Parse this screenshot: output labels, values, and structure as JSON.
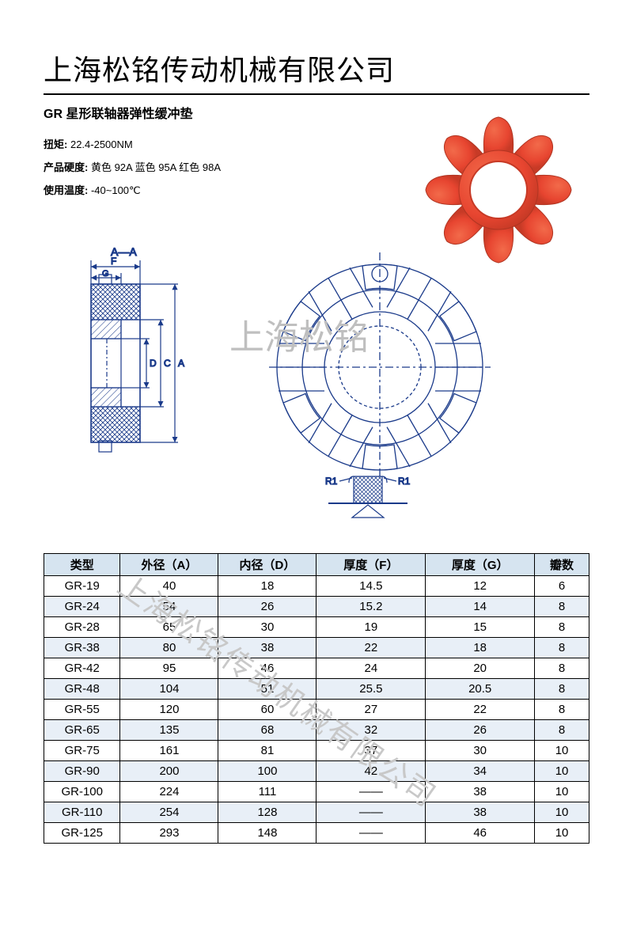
{
  "header": {
    "company": "上海松铭传动机械有限公司",
    "subtitle": "GR 星形联轴器弹性缓冲垫"
  },
  "specs": {
    "torque_label": "扭矩:",
    "torque_value": "22.4-2500NM",
    "hardness_label": "产品硬度:",
    "hardness_value": "黄色 92A 蓝色 95A 红色 98A",
    "temp_label": "使用温度:",
    "temp_value": "-40~100℃"
  },
  "product_image": {
    "type": "star-coupling-spider",
    "color": "#e74530",
    "petals": 8
  },
  "diagram": {
    "section_label": "A—A",
    "dims": {
      "F": "F",
      "G": "G",
      "D": "D",
      "C": "C",
      "A": "A"
    },
    "detail": {
      "R1_left": "R1",
      "R1_right": "R1"
    },
    "line_color": "#1a3a8a",
    "hatch_color": "#1a3a8a"
  },
  "watermarks": {
    "w1": "上海松铭",
    "w2": "上海松铭传动机械有限公司"
  },
  "table": {
    "columns": [
      "类型",
      "外径（A）",
      "内径（D）",
      "厚度（F）",
      "厚度（G）",
      "瓣数"
    ],
    "rows": [
      [
        "GR-19",
        "40",
        "18",
        "14.5",
        "12",
        "6"
      ],
      [
        "GR-24",
        "54",
        "26",
        "15.2",
        "14",
        "8"
      ],
      [
        "GR-28",
        "65",
        "30",
        "19",
        "15",
        "8"
      ],
      [
        "GR-38",
        "80",
        "38",
        "22",
        "18",
        "8"
      ],
      [
        "GR-42",
        "95",
        "46",
        "24",
        "20",
        "8"
      ],
      [
        "GR-48",
        "104",
        "51",
        "25.5",
        "20.5",
        "8"
      ],
      [
        "GR-55",
        "120",
        "60",
        "27",
        "22",
        "8"
      ],
      [
        "GR-65",
        "135",
        "68",
        "32",
        "26",
        "8"
      ],
      [
        "GR-75",
        "161",
        "81",
        "37",
        "30",
        "10"
      ],
      [
        "GR-90",
        "200",
        "100",
        "42",
        "34",
        "10"
      ],
      [
        "GR-100",
        "224",
        "111",
        "——",
        "38",
        "10"
      ],
      [
        "GR-110",
        "254",
        "128",
        "——",
        "38",
        "10"
      ],
      [
        "GR-125",
        "293",
        "148",
        "——",
        "46",
        "10"
      ]
    ],
    "header_bg": "#d6e4f0",
    "row_even_bg": "#e8eff7",
    "row_odd_bg": "#ffffff"
  }
}
